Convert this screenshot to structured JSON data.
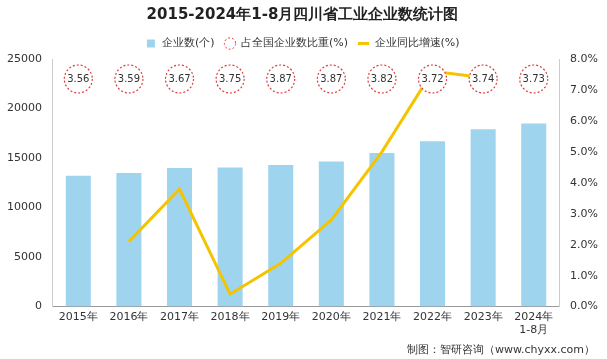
{
  "chart_data": {
    "type": "bar",
    "title": "2015-2024年1-8月四川省工业企业数统计图",
    "categories": [
      "2015年",
      "2016年",
      "2017年",
      "2018年",
      "2019年",
      "2020年",
      "2021年",
      "2022年",
      "2023年",
      "2024年\n1-8月"
    ],
    "series": [
      {
        "name": "企业数(个)",
        "type": "bar",
        "color": "#9fd4ee",
        "values": [
          13200,
          13500,
          14000,
          14050,
          14300,
          14650,
          15500,
          16700,
          17900,
          18500
        ]
      },
      {
        "name": "占全国企业数比重(%)",
        "type": "scatter",
        "marker": "circle",
        "line_style": "dashed",
        "color": "#e03a3a",
        "data_labels": true,
        "values": [
          3.56,
          3.59,
          3.67,
          3.75,
          3.87,
          3.87,
          3.82,
          3.72,
          3.74,
          3.73
        ]
      },
      {
        "name": "企业同比增速(%)",
        "type": "line",
        "color": "#f5c400",
        "axis": "y2",
        "values": [
          null,
          2.1,
          3.8,
          0.4,
          1.4,
          2.8,
          5.0,
          7.6,
          7.4,
          null
        ]
      }
    ],
    "ylim": [
      0,
      25000
    ],
    "yticks": [
      0,
      5000,
      10000,
      15000,
      20000,
      25000
    ],
    "y2lim": [
      0,
      8
    ],
    "y2ticks": [
      {
        "value": 0,
        "label": "0.0%"
      },
      {
        "value": 1,
        "label": "1.0%"
      },
      {
        "value": 2,
        "label": "2.0%"
      },
      {
        "value": 3,
        "label": "3.0%"
      },
      {
        "value": 4,
        "label": "4.0%"
      },
      {
        "value": 5,
        "label": "5.0%"
      },
      {
        "value": 6,
        "label": "6.0%"
      },
      {
        "value": 7,
        "label": "7.0%"
      },
      {
        "value": 8,
        "label": "8.0%"
      }
    ],
    "grid": false,
    "legend": "top",
    "source": "制图：智研咨询（www.chyxx.com）"
  }
}
